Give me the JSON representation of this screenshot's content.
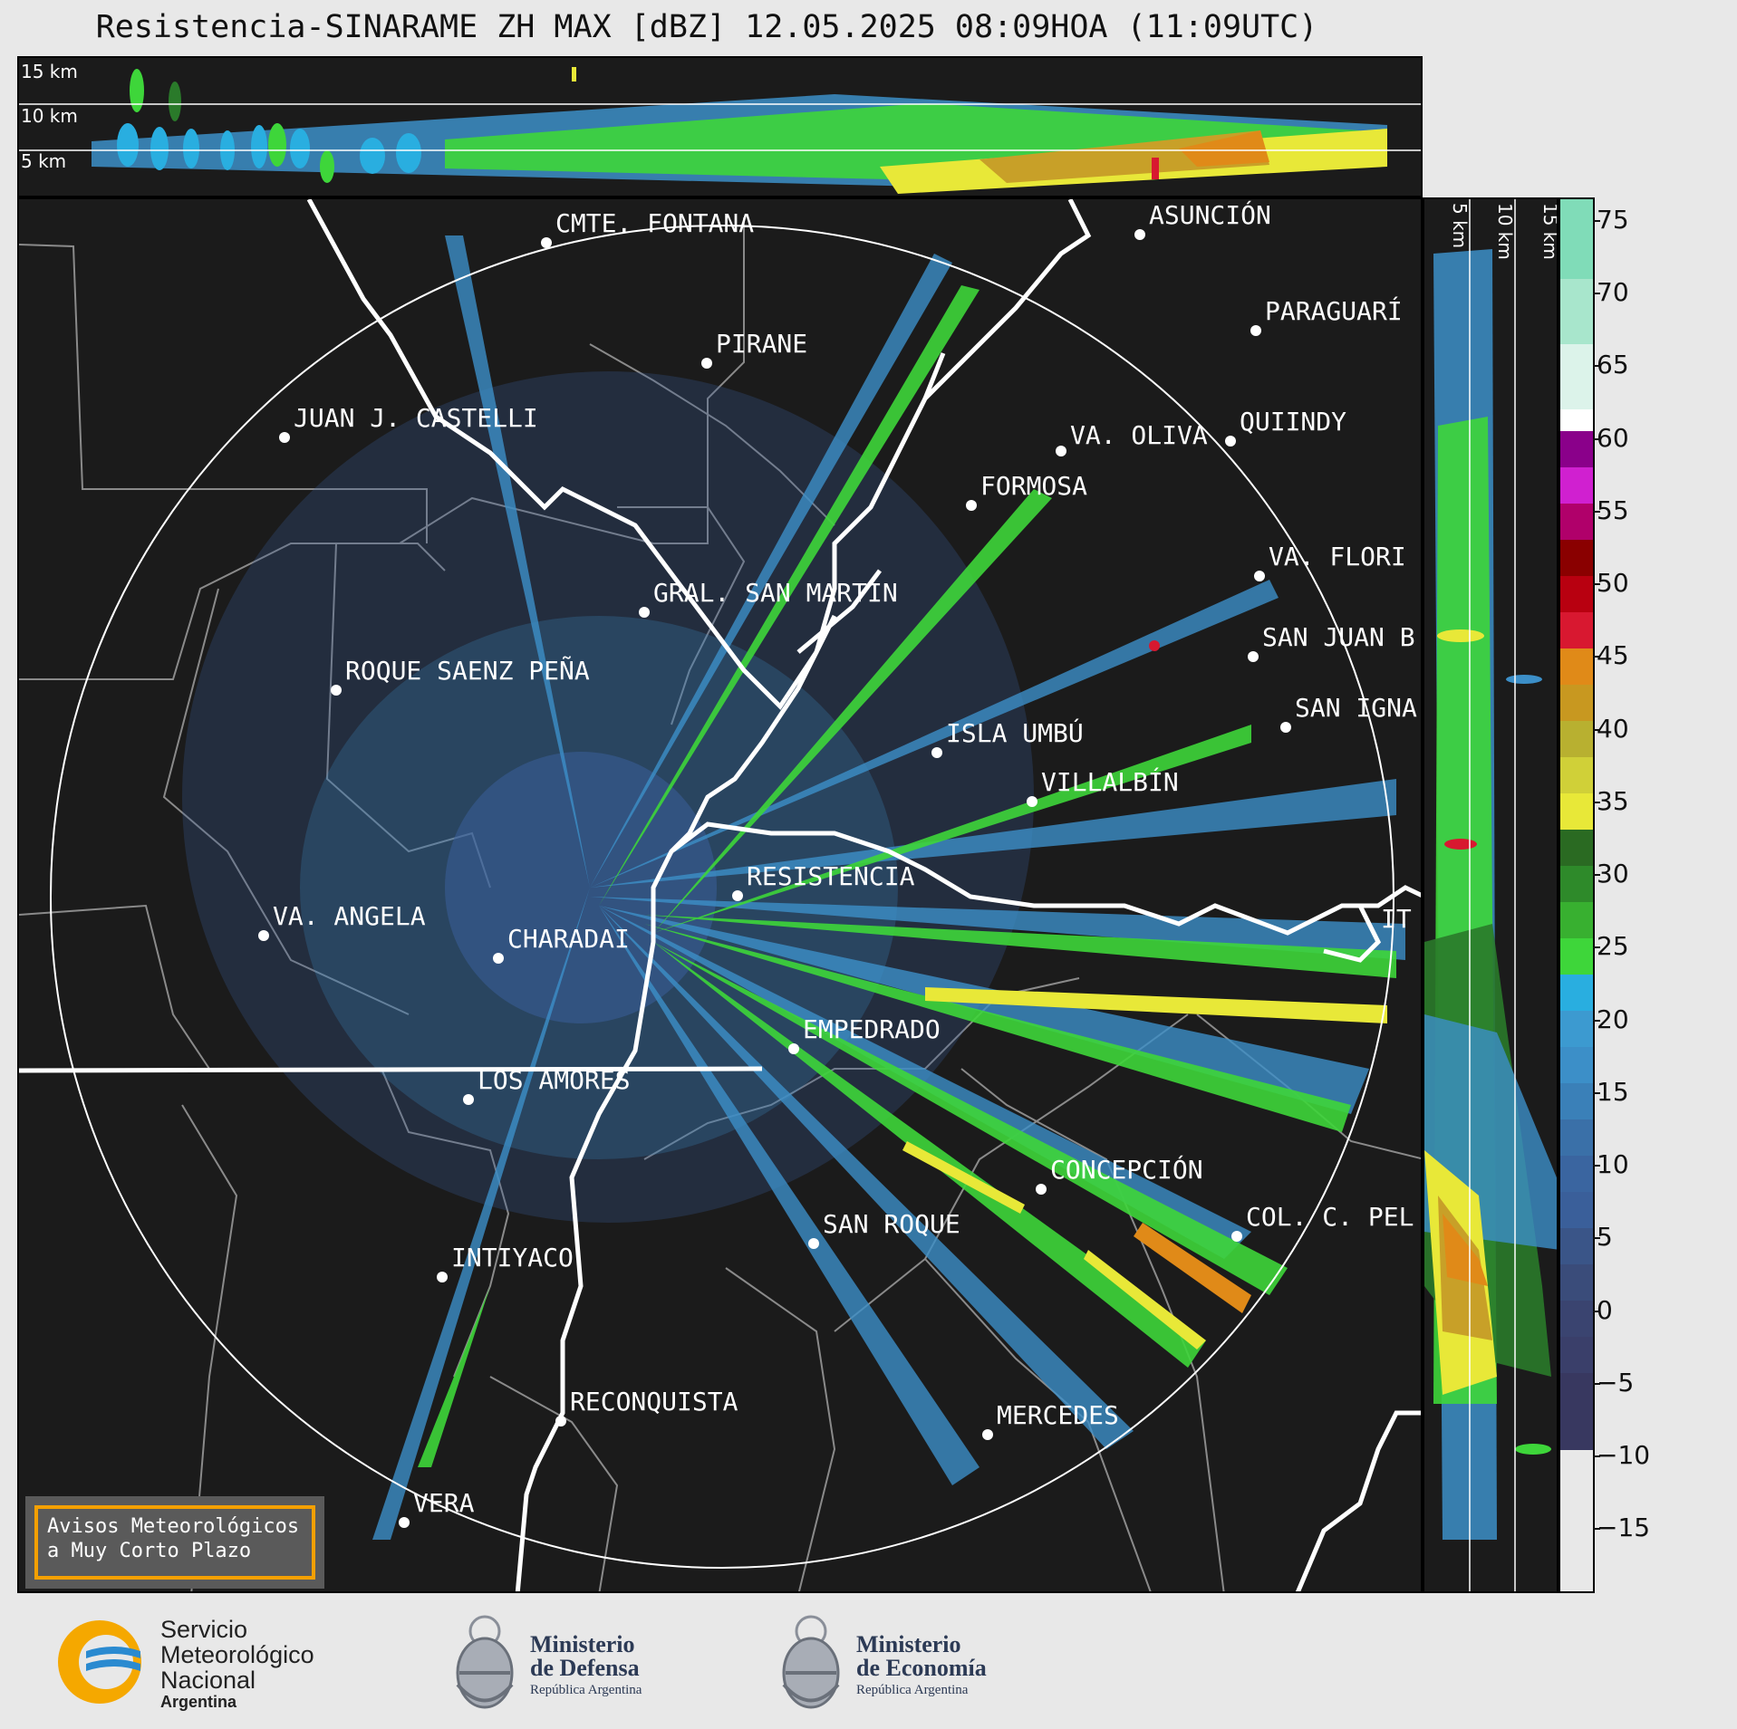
{
  "title": "Resistencia-SINARAME ZH MAX [dBZ] 12.05.2025 08:09HOA (11:09UTC)",
  "top_panel": {
    "height_labels": [
      "15 km",
      "10 km",
      "5 km"
    ]
  },
  "side_panel": {
    "height_labels": [
      "5 km",
      "10 km",
      "15 km"
    ]
  },
  "map": {
    "cities": [
      {
        "name": "CMTE. FONTANA"
      },
      {
        "name": "ASUNCIÓN"
      },
      {
        "name": "PARAGUARÍ"
      },
      {
        "name": "PIRANE"
      },
      {
        "name": "JUAN J. CASTELLI"
      },
      {
        "name": "VA. OLIVA"
      },
      {
        "name": "QUIINDY"
      },
      {
        "name": "FORMOSA"
      },
      {
        "name": "VA. FLORI"
      },
      {
        "name": "GRAL. SAN MARTIN"
      },
      {
        "name": "SAN JUAN B"
      },
      {
        "name": "ROQUE SAENZ PEÑA"
      },
      {
        "name": "SAN IGNA"
      },
      {
        "name": "ISLA UMBÚ"
      },
      {
        "name": "VILLALBÍN"
      },
      {
        "name": "RESISTENCIA"
      },
      {
        "name": "VA. ANGELA"
      },
      {
        "name": "CHARADAI"
      },
      {
        "name": "IT"
      },
      {
        "name": "EMPEDRADO"
      },
      {
        "name": "LOS AMORES"
      },
      {
        "name": "CONCEPCIÓN"
      },
      {
        "name": "SAN ROQUE"
      },
      {
        "name": "COL. C. PEL"
      },
      {
        "name": "INTIYACO"
      },
      {
        "name": "RECONQUISTA"
      },
      {
        "name": "MERCEDES"
      },
      {
        "name": "VERA"
      }
    ]
  },
  "colorbar": {
    "unit": "dBZ",
    "ticks": [
      "75",
      "70",
      "65",
      "60",
      "55",
      "50",
      "45",
      "40",
      "35",
      "30",
      "25",
      "20",
      "15",
      "10",
      "5",
      "0",
      "−5",
      "−10",
      "−15"
    ],
    "colors": {
      "deep": "#3a3f6a",
      "blue_dark": "#3a5f9a",
      "blue": "#3c8fc8",
      "cyan": "#29aee0",
      "green": "#3ed63a",
      "green_dark": "#2a7a2a",
      "yellow": "#e8e838",
      "orange": "#e08a18",
      "red": "#d81830",
      "dark_red": "#8a0000",
      "magenta": "#d020d0",
      "purple": "#8a008a",
      "white": "#ffffff",
      "mint": "#80dcb8"
    }
  },
  "notice": {
    "line1": "Avisos Meteorológicos",
    "line2": "a Muy Corto Plazo"
  },
  "footer": {
    "smn_line1": "Servicio",
    "smn_line2": "Meteorológico",
    "smn_line3": "Nacional",
    "smn_country": "Argentina",
    "defensa_line1": "Ministerio",
    "defensa_line2": "de Defensa",
    "defensa_sub": "República Argentina",
    "economia_line1": "Ministerio",
    "economia_line2": "de Economía",
    "economia_sub": "República Argentina"
  }
}
